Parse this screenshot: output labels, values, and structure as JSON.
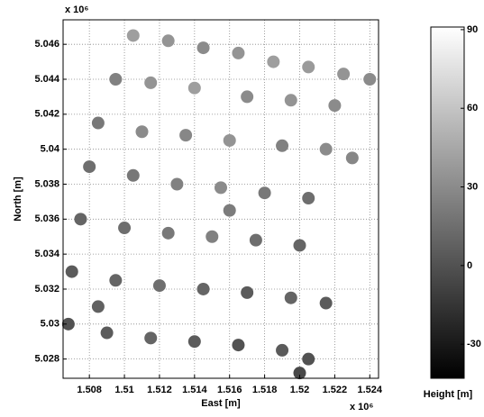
{
  "chart_data": {
    "type": "scatter",
    "xlabel": "East [m]",
    "ylabel": "North [m]",
    "x_multiplier": "x 10⁶",
    "y_multiplier": "x 10⁶",
    "colorbar_label": "Height [m]",
    "xlim": [
      1.5065,
      1.5245
    ],
    "ylim": [
      5.0269,
      5.0474
    ],
    "xticks": [
      1.508,
      1.51,
      1.512,
      1.514,
      1.516,
      1.518,
      1.52,
      1.522,
      1.524
    ],
    "yticks": [
      5.028,
      5.03,
      5.032,
      5.034,
      5.036,
      5.038,
      5.04,
      5.042,
      5.044,
      5.046
    ],
    "clim": [
      -43,
      91
    ],
    "cticks": [
      -30,
      0,
      30,
      60,
      90
    ],
    "grid": true,
    "colormap": "gray",
    "x": [
      1.5105,
      1.5125,
      1.5145,
      1.5165,
      1.5185,
      1.5205,
      1.5225,
      1.524,
      1.5095,
      1.5115,
      1.514,
      1.517,
      1.5195,
      1.522,
      1.5085,
      1.511,
      1.5135,
      1.516,
      1.519,
      1.5215,
      1.508,
      1.5105,
      1.513,
      1.5155,
      1.518,
      1.5205,
      1.5075,
      1.51,
      1.5125,
      1.515,
      1.5175,
      1.52,
      1.507,
      1.5095,
      1.512,
      1.5145,
      1.517,
      1.5195,
      1.5215,
      1.5068,
      1.509,
      1.5115,
      1.514,
      1.5165,
      1.519,
      1.5205,
      1.52,
      1.5085,
      1.516,
      1.523
    ],
    "y": [
      5.0465,
      5.0462,
      5.0458,
      5.0455,
      5.045,
      5.0447,
      5.0443,
      5.044,
      5.044,
      5.0438,
      5.0435,
      5.043,
      5.0428,
      5.0425,
      5.0415,
      5.041,
      5.0408,
      5.0405,
      5.0402,
      5.04,
      5.039,
      5.0385,
      5.038,
      5.0378,
      5.0375,
      5.0372,
      5.036,
      5.0355,
      5.0352,
      5.035,
      5.0348,
      5.0345,
      5.033,
      5.0325,
      5.0322,
      5.032,
      5.0318,
      5.0315,
      5.0312,
      5.03,
      5.0295,
      5.0292,
      5.029,
      5.0288,
      5.0285,
      5.028,
      5.0272,
      5.031,
      5.0365,
      5.0395
    ],
    "z": [
      40,
      35,
      30,
      35,
      40,
      38,
      35,
      30,
      25,
      35,
      40,
      30,
      35,
      30,
      20,
      30,
      28,
      35,
      25,
      30,
      15,
      20,
      25,
      30,
      20,
      15,
      10,
      15,
      20,
      25,
      15,
      10,
      5,
      10,
      15,
      10,
      5,
      10,
      5,
      0,
      5,
      10,
      5,
      0,
      5,
      0,
      -5,
      8,
      22,
      28
    ]
  }
}
